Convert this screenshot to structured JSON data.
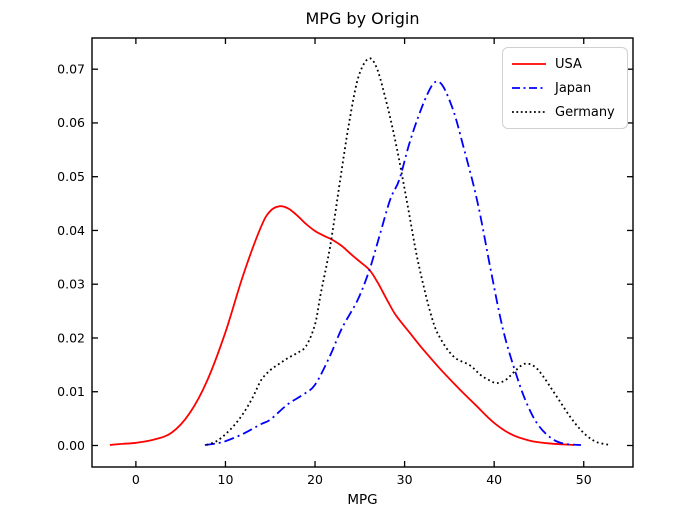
{
  "chart_data": {
    "type": "line",
    "subtype": "kde-density",
    "title": "MPG by Origin",
    "xlabel": "MPG",
    "ylabel": "",
    "xlim": [
      -4.9,
      55.5
    ],
    "ylim": [
      -0.004,
      0.0758
    ],
    "xticks": {
      "values": [
        0,
        10,
        20,
        30,
        40,
        50
      ],
      "labels": [
        "0",
        "10",
        "20",
        "30",
        "40",
        "50"
      ]
    },
    "yticks": {
      "values": [
        0.0,
        0.01,
        0.02,
        0.03,
        0.04,
        0.05,
        0.06,
        0.07
      ],
      "labels": [
        "0.00",
        "0.01",
        "0.02",
        "0.03",
        "0.04",
        "0.05",
        "0.06",
        "0.07"
      ]
    },
    "grid": false,
    "tick_style": {
      "direction": "in",
      "top": true,
      "right": true
    },
    "axis_color": "#000000",
    "legend": {
      "position": "upper right",
      "border_color": "#d0d0d0"
    },
    "series": [
      {
        "name": "USA",
        "color": "#ff0000",
        "linestyle": "solid",
        "peak": {
          "x": 16,
          "y": 0.0445
        },
        "points": [
          [
            -2.9,
            0.0001
          ],
          [
            -1.5,
            0.0003
          ],
          [
            0,
            0.0005
          ],
          [
            2,
            0.0011
          ],
          [
            4,
            0.0024
          ],
          [
            6,
            0.006
          ],
          [
            8,
            0.0122
          ],
          [
            10,
            0.0211
          ],
          [
            12,
            0.0318
          ],
          [
            14,
            0.0408
          ],
          [
            15,
            0.0436
          ],
          [
            16,
            0.0445
          ],
          [
            17,
            0.0441
          ],
          [
            18,
            0.0428
          ],
          [
            19,
            0.0412
          ],
          [
            20,
            0.0399
          ],
          [
            21,
            0.039
          ],
          [
            22,
            0.0382
          ],
          [
            23,
            0.0371
          ],
          [
            24,
            0.0356
          ],
          [
            25,
            0.0342
          ],
          [
            26.1,
            0.0326
          ],
          [
            27,
            0.0303
          ],
          [
            28,
            0.0272
          ],
          [
            29,
            0.0243
          ],
          [
            30.6,
            0.0209
          ],
          [
            32,
            0.018
          ],
          [
            34,
            0.0142
          ],
          [
            36,
            0.0107
          ],
          [
            38,
            0.0074
          ],
          [
            40,
            0.0042
          ],
          [
            42,
            0.002
          ],
          [
            44,
            0.0009
          ],
          [
            46,
            0.0004
          ],
          [
            48.9,
            0.0001
          ]
        ]
      },
      {
        "name": "Japan",
        "color": "#0000ff",
        "linestyle": "dashdot",
        "peak": {
          "x": 33.4,
          "y": 0.0676
        },
        "points": [
          [
            7.7,
            0.0001
          ],
          [
            9,
            0.0004
          ],
          [
            10,
            0.0008
          ],
          [
            12,
            0.0022
          ],
          [
            14,
            0.004
          ],
          [
            15,
            0.0048
          ],
          [
            16.9,
            0.0076
          ],
          [
            18.5,
            0.0093
          ],
          [
            20,
            0.0113
          ],
          [
            21.7,
            0.0168
          ],
          [
            23,
            0.0218
          ],
          [
            24.8,
            0.0272
          ],
          [
            26.1,
            0.0328
          ],
          [
            27.2,
            0.039
          ],
          [
            28.4,
            0.0458
          ],
          [
            29.4,
            0.0494
          ],
          [
            30.5,
            0.056
          ],
          [
            31.5,
            0.061
          ],
          [
            32.5,
            0.0652
          ],
          [
            33.4,
            0.0676
          ],
          [
            34.3,
            0.0668
          ],
          [
            35.5,
            0.062
          ],
          [
            36.5,
            0.056
          ],
          [
            38.1,
            0.0456
          ],
          [
            39.6,
            0.0328
          ],
          [
            41,
            0.0215
          ],
          [
            42.5,
            0.013
          ],
          [
            43.7,
            0.0076
          ],
          [
            45,
            0.0036
          ],
          [
            46.6,
            0.0011
          ],
          [
            48,
            0.0003
          ],
          [
            49.7,
            0.0001
          ]
        ]
      },
      {
        "name": "Germany",
        "color": "#000000",
        "linestyle": "dotted",
        "peak": {
          "x": 25.9,
          "y": 0.0719
        },
        "points": [
          [
            7.9,
            0.0001
          ],
          [
            9,
            0.0008
          ],
          [
            10,
            0.0021
          ],
          [
            11,
            0.0038
          ],
          [
            12,
            0.006
          ],
          [
            13,
            0.0088
          ],
          [
            14,
            0.0122
          ],
          [
            15,
            0.014
          ],
          [
            16,
            0.0152
          ],
          [
            17,
            0.0163
          ],
          [
            18,
            0.0172
          ],
          [
            19,
            0.0185
          ],
          [
            20,
            0.0225
          ],
          [
            20.6,
            0.0279
          ],
          [
            21.7,
            0.0372
          ],
          [
            22.8,
            0.0493
          ],
          [
            23.8,
            0.06
          ],
          [
            24.8,
            0.0683
          ],
          [
            25.9,
            0.0719
          ],
          [
            26.8,
            0.0706
          ],
          [
            27.8,
            0.065
          ],
          [
            29,
            0.0564
          ],
          [
            30.3,
            0.045
          ],
          [
            31.5,
            0.0342
          ],
          [
            33,
            0.024
          ],
          [
            34,
            0.0199
          ],
          [
            35.5,
            0.0165
          ],
          [
            37.3,
            0.0149
          ],
          [
            38.5,
            0.0131
          ],
          [
            39.5,
            0.0121
          ],
          [
            40.3,
            0.0116
          ],
          [
            41.3,
            0.0122
          ],
          [
            42.3,
            0.0138
          ],
          [
            43.4,
            0.0152
          ],
          [
            44.5,
            0.0147
          ],
          [
            45.5,
            0.0128
          ],
          [
            46.5,
            0.0103
          ],
          [
            47.5,
            0.0078
          ],
          [
            48.5,
            0.0053
          ],
          [
            49.5,
            0.0032
          ],
          [
            50.5,
            0.0016
          ],
          [
            51.5,
            0.0006
          ],
          [
            52.9,
            0.0001
          ]
        ]
      }
    ]
  }
}
